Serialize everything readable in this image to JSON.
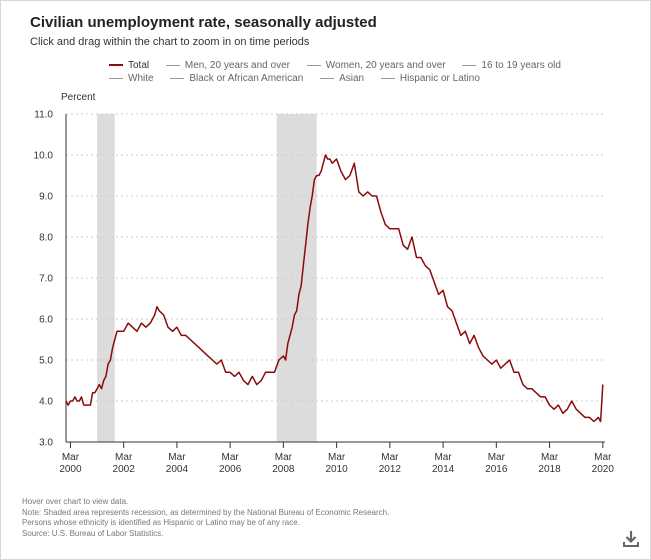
{
  "title": "Civilian unemployment rate, seasonally adjusted",
  "subtitle": "Click and drag within the chart to zoom in on time periods",
  "legend": [
    {
      "label": "Total",
      "active": true
    },
    {
      "label": "Men, 20 years and over",
      "active": false
    },
    {
      "label": "Women, 20 years and over",
      "active": false
    },
    {
      "label": "16 to 19 years old",
      "active": false
    },
    {
      "label": "White",
      "active": false
    },
    {
      "label": "Black or African American",
      "active": false
    },
    {
      "label": "Asian",
      "active": false
    },
    {
      "label": "Hispanic or Latino",
      "active": false
    }
  ],
  "notes": [
    "Hover over chart to view data.",
    "Note: Shaded area represents recession, as determined by the National Bureau of Economic Research.",
    "Persons whose ethnicity is identified as Hispanic or Latino may be of any race.",
    "Source: U.S. Bureau of Labor Statistics."
  ],
  "download_icon": "download-icon",
  "colors": {
    "line": "#8b0a0a",
    "recession": "#dcdcdc",
    "grid": "#cccccc",
    "axis": "#333333"
  },
  "chart_data": {
    "type": "line",
    "title": "Civilian unemployment rate, seasonally adjusted",
    "ylabel": "Percent",
    "ylim": [
      3.0,
      11.0
    ],
    "yticks": [
      "3.0",
      "4.0",
      "5.0",
      "6.0",
      "7.0",
      "8.0",
      "9.0",
      "10.0",
      "11.0"
    ],
    "xticks": [
      {
        "month": "Mar",
        "year": "2000",
        "t": 2000.167
      },
      {
        "month": "Mar",
        "year": "2002",
        "t": 2002.167
      },
      {
        "month": "Mar",
        "year": "2004",
        "t": 2004.167
      },
      {
        "month": "Mar",
        "year": "2006",
        "t": 2006.167
      },
      {
        "month": "Mar",
        "year": "2008",
        "t": 2008.167
      },
      {
        "month": "Mar",
        "year": "2010",
        "t": 2010.167
      },
      {
        "month": "Mar",
        "year": "2012",
        "t": 2012.167
      },
      {
        "month": "Mar",
        "year": "2014",
        "t": 2014.167
      },
      {
        "month": "Mar",
        "year": "2016",
        "t": 2016.167
      },
      {
        "month": "Mar",
        "year": "2018",
        "t": 2018.167
      },
      {
        "month": "Mar",
        "year": "2020",
        "t": 2020.167
      }
    ],
    "xlim": [
      2000.0,
      2020.25
    ],
    "recessions": [
      [
        2001.167,
        2001.833
      ],
      [
        2007.917,
        2009.417
      ]
    ],
    "grid": true,
    "series": [
      {
        "name": "Total",
        "x": [
          2000.0,
          2000.083,
          2000.167,
          2000.25,
          2000.333,
          2000.417,
          2000.5,
          2000.583,
          2000.667,
          2000.75,
          2000.833,
          2000.917,
          2001.0,
          2001.083,
          2001.167,
          2001.25,
          2001.333,
          2001.417,
          2001.5,
          2001.583,
          2001.667,
          2001.75,
          2001.833,
          2001.917,
          2002.0,
          2002.167,
          2002.333,
          2002.5,
          2002.667,
          2002.833,
          2003.0,
          2003.167,
          2003.333,
          2003.417,
          2003.5,
          2003.667,
          2003.833,
          2004.0,
          2004.167,
          2004.333,
          2004.5,
          2004.667,
          2004.833,
          2005.0,
          2005.167,
          2005.333,
          2005.5,
          2005.667,
          2005.833,
          2006.0,
          2006.167,
          2006.333,
          2006.5,
          2006.667,
          2006.833,
          2007.0,
          2007.167,
          2007.333,
          2007.5,
          2007.667,
          2007.833,
          2008.0,
          2008.167,
          2008.25,
          2008.333,
          2008.417,
          2008.5,
          2008.583,
          2008.667,
          2008.75,
          2008.833,
          2008.917,
          2009.0,
          2009.083,
          2009.167,
          2009.25,
          2009.333,
          2009.417,
          2009.5,
          2009.583,
          2009.667,
          2009.75,
          2009.833,
          2009.917,
          2010.0,
          2010.167,
          2010.333,
          2010.5,
          2010.667,
          2010.833,
          2011.0,
          2011.167,
          2011.333,
          2011.5,
          2011.667,
          2011.833,
          2012.0,
          2012.167,
          2012.333,
          2012.5,
          2012.667,
          2012.833,
          2013.0,
          2013.167,
          2013.333,
          2013.5,
          2013.667,
          2013.833,
          2014.0,
          2014.167,
          2014.333,
          2014.5,
          2014.667,
          2014.833,
          2015.0,
          2015.167,
          2015.333,
          2015.5,
          2015.667,
          2015.833,
          2016.0,
          2016.167,
          2016.333,
          2016.5,
          2016.667,
          2016.833,
          2017.0,
          2017.167,
          2017.333,
          2017.5,
          2017.667,
          2017.833,
          2018.0,
          2018.167,
          2018.333,
          2018.5,
          2018.667,
          2018.833,
          2019.0,
          2019.167,
          2019.333,
          2019.5,
          2019.667,
          2019.833,
          2020.0,
          2020.083,
          2020.167
        ],
        "y": [
          4.0,
          3.9,
          4.0,
          4.0,
          4.1,
          4.0,
          4.0,
          4.1,
          3.9,
          3.9,
          3.9,
          3.9,
          4.2,
          4.2,
          4.3,
          4.4,
          4.3,
          4.5,
          4.6,
          4.9,
          5.0,
          5.3,
          5.5,
          5.7,
          5.7,
          5.7,
          5.9,
          5.8,
          5.7,
          5.9,
          5.8,
          5.9,
          6.1,
          6.3,
          6.2,
          6.1,
          5.8,
          5.7,
          5.8,
          5.6,
          5.6,
          5.5,
          5.4,
          5.3,
          5.2,
          5.1,
          5.0,
          4.9,
          5.0,
          4.7,
          4.7,
          4.6,
          4.7,
          4.5,
          4.4,
          4.6,
          4.4,
          4.5,
          4.7,
          4.7,
          4.7,
          5.0,
          5.1,
          5.0,
          5.4,
          5.6,
          5.8,
          6.1,
          6.2,
          6.6,
          6.8,
          7.3,
          7.8,
          8.3,
          8.7,
          9.0,
          9.4,
          9.5,
          9.5,
          9.6,
          9.8,
          10.0,
          9.9,
          9.9,
          9.8,
          9.9,
          9.6,
          9.4,
          9.5,
          9.8,
          9.1,
          9.0,
          9.1,
          9.0,
          9.0,
          8.6,
          8.3,
          8.2,
          8.2,
          8.2,
          7.8,
          7.7,
          8.0,
          7.5,
          7.5,
          7.3,
          7.2,
          6.9,
          6.6,
          6.7,
          6.3,
          6.2,
          5.9,
          5.6,
          5.7,
          5.4,
          5.6,
          5.3,
          5.1,
          5.0,
          4.9,
          5.0,
          4.8,
          4.9,
          5.0,
          4.7,
          4.7,
          4.4,
          4.3,
          4.3,
          4.2,
          4.1,
          4.1,
          3.9,
          3.8,
          3.9,
          3.7,
          3.8,
          4.0,
          3.8,
          3.7,
          3.6,
          3.6,
          3.5,
          3.6,
          3.5,
          4.4
        ]
      }
    ]
  }
}
